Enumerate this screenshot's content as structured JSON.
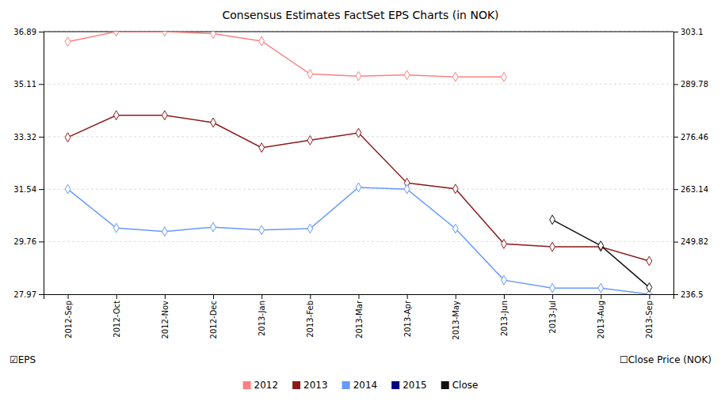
{
  "chart_data": {
    "type": "line",
    "title": "Consensus Estimates FactSet EPS Charts (in NOK)",
    "categories": [
      "2012-Sep",
      "2012-Oct",
      "2012-Nov",
      "2012-Dec",
      "2013-Jan",
      "2013-Feb",
      "2013-Mar",
      "2013-Apr",
      "2013-May",
      "2013-Jun",
      "2013-Jul",
      "2013-Aug",
      "2013-Sep"
    ],
    "series": [
      {
        "name": "2012",
        "color": "#FF8080",
        "values": [
          36.55,
          36.89,
          36.89,
          36.82,
          36.57,
          35.45,
          35.38,
          35.42,
          35.35,
          35.35,
          null,
          null,
          null
        ]
      },
      {
        "name": "2013",
        "color": "#8B1A1A",
        "values": [
          33.3,
          34.05,
          34.05,
          33.8,
          32.95,
          33.2,
          33.45,
          31.75,
          31.55,
          29.68,
          29.58,
          29.58,
          29.1
        ]
      },
      {
        "name": "2014",
        "color": "#6699FF",
        "values": [
          31.54,
          30.22,
          30.1,
          30.25,
          30.15,
          30.2,
          31.6,
          31.54,
          30.2,
          28.45,
          28.18,
          28.18,
          27.97
        ]
      },
      {
        "name": "2015",
        "color": "#000080",
        "values": [
          null,
          null,
          null,
          null,
          null,
          null,
          null,
          null,
          null,
          null,
          null,
          null,
          null
        ]
      },
      {
        "name": "Close",
        "color": "#111111",
        "values": [
          null,
          null,
          null,
          null,
          null,
          null,
          null,
          null,
          null,
          null,
          30.5,
          29.62,
          28.2
        ]
      }
    ],
    "ylim": [
      27.97,
      36.89
    ],
    "yticks": [
      27.97,
      29.76,
      31.54,
      33.32,
      35.11,
      36.89
    ],
    "y2lim": [
      236.5,
      303.1
    ],
    "y2ticks": [
      236.5,
      249.82,
      263.14,
      276.46,
      289.78,
      303.1
    ],
    "grid": true,
    "legend": "bottom",
    "marker": "diamond",
    "annotations": [
      "☑EPS",
      "☐Close Price (NOK)"
    ]
  }
}
